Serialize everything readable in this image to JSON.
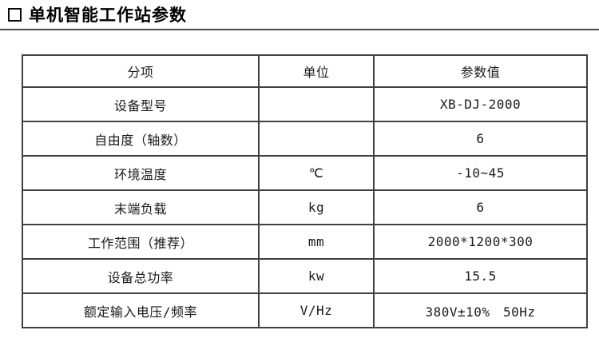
{
  "title": "单机智能工作站参数",
  "colors": {
    "table_border": "#404040",
    "title_rule": "#4a4a4a",
    "text": "#1a1a1a"
  },
  "table": {
    "headers": [
      "分项",
      "单位",
      "参数值"
    ],
    "rows": [
      [
        "设备型号",
        "",
        "XB-DJ-2000"
      ],
      [
        "自由度（轴数）",
        "",
        "6"
      ],
      [
        "环境温度",
        "℃",
        "-10~45"
      ],
      [
        "末端负载",
        "kg",
        "6"
      ],
      [
        "工作范围（推荐）",
        "mm",
        "2000*1200*300"
      ],
      [
        "设备总功率",
        "kw",
        "15.5"
      ],
      [
        "额定输入电压/频率",
        "V/Hz",
        "380V±10%　50Hz"
      ]
    ]
  }
}
